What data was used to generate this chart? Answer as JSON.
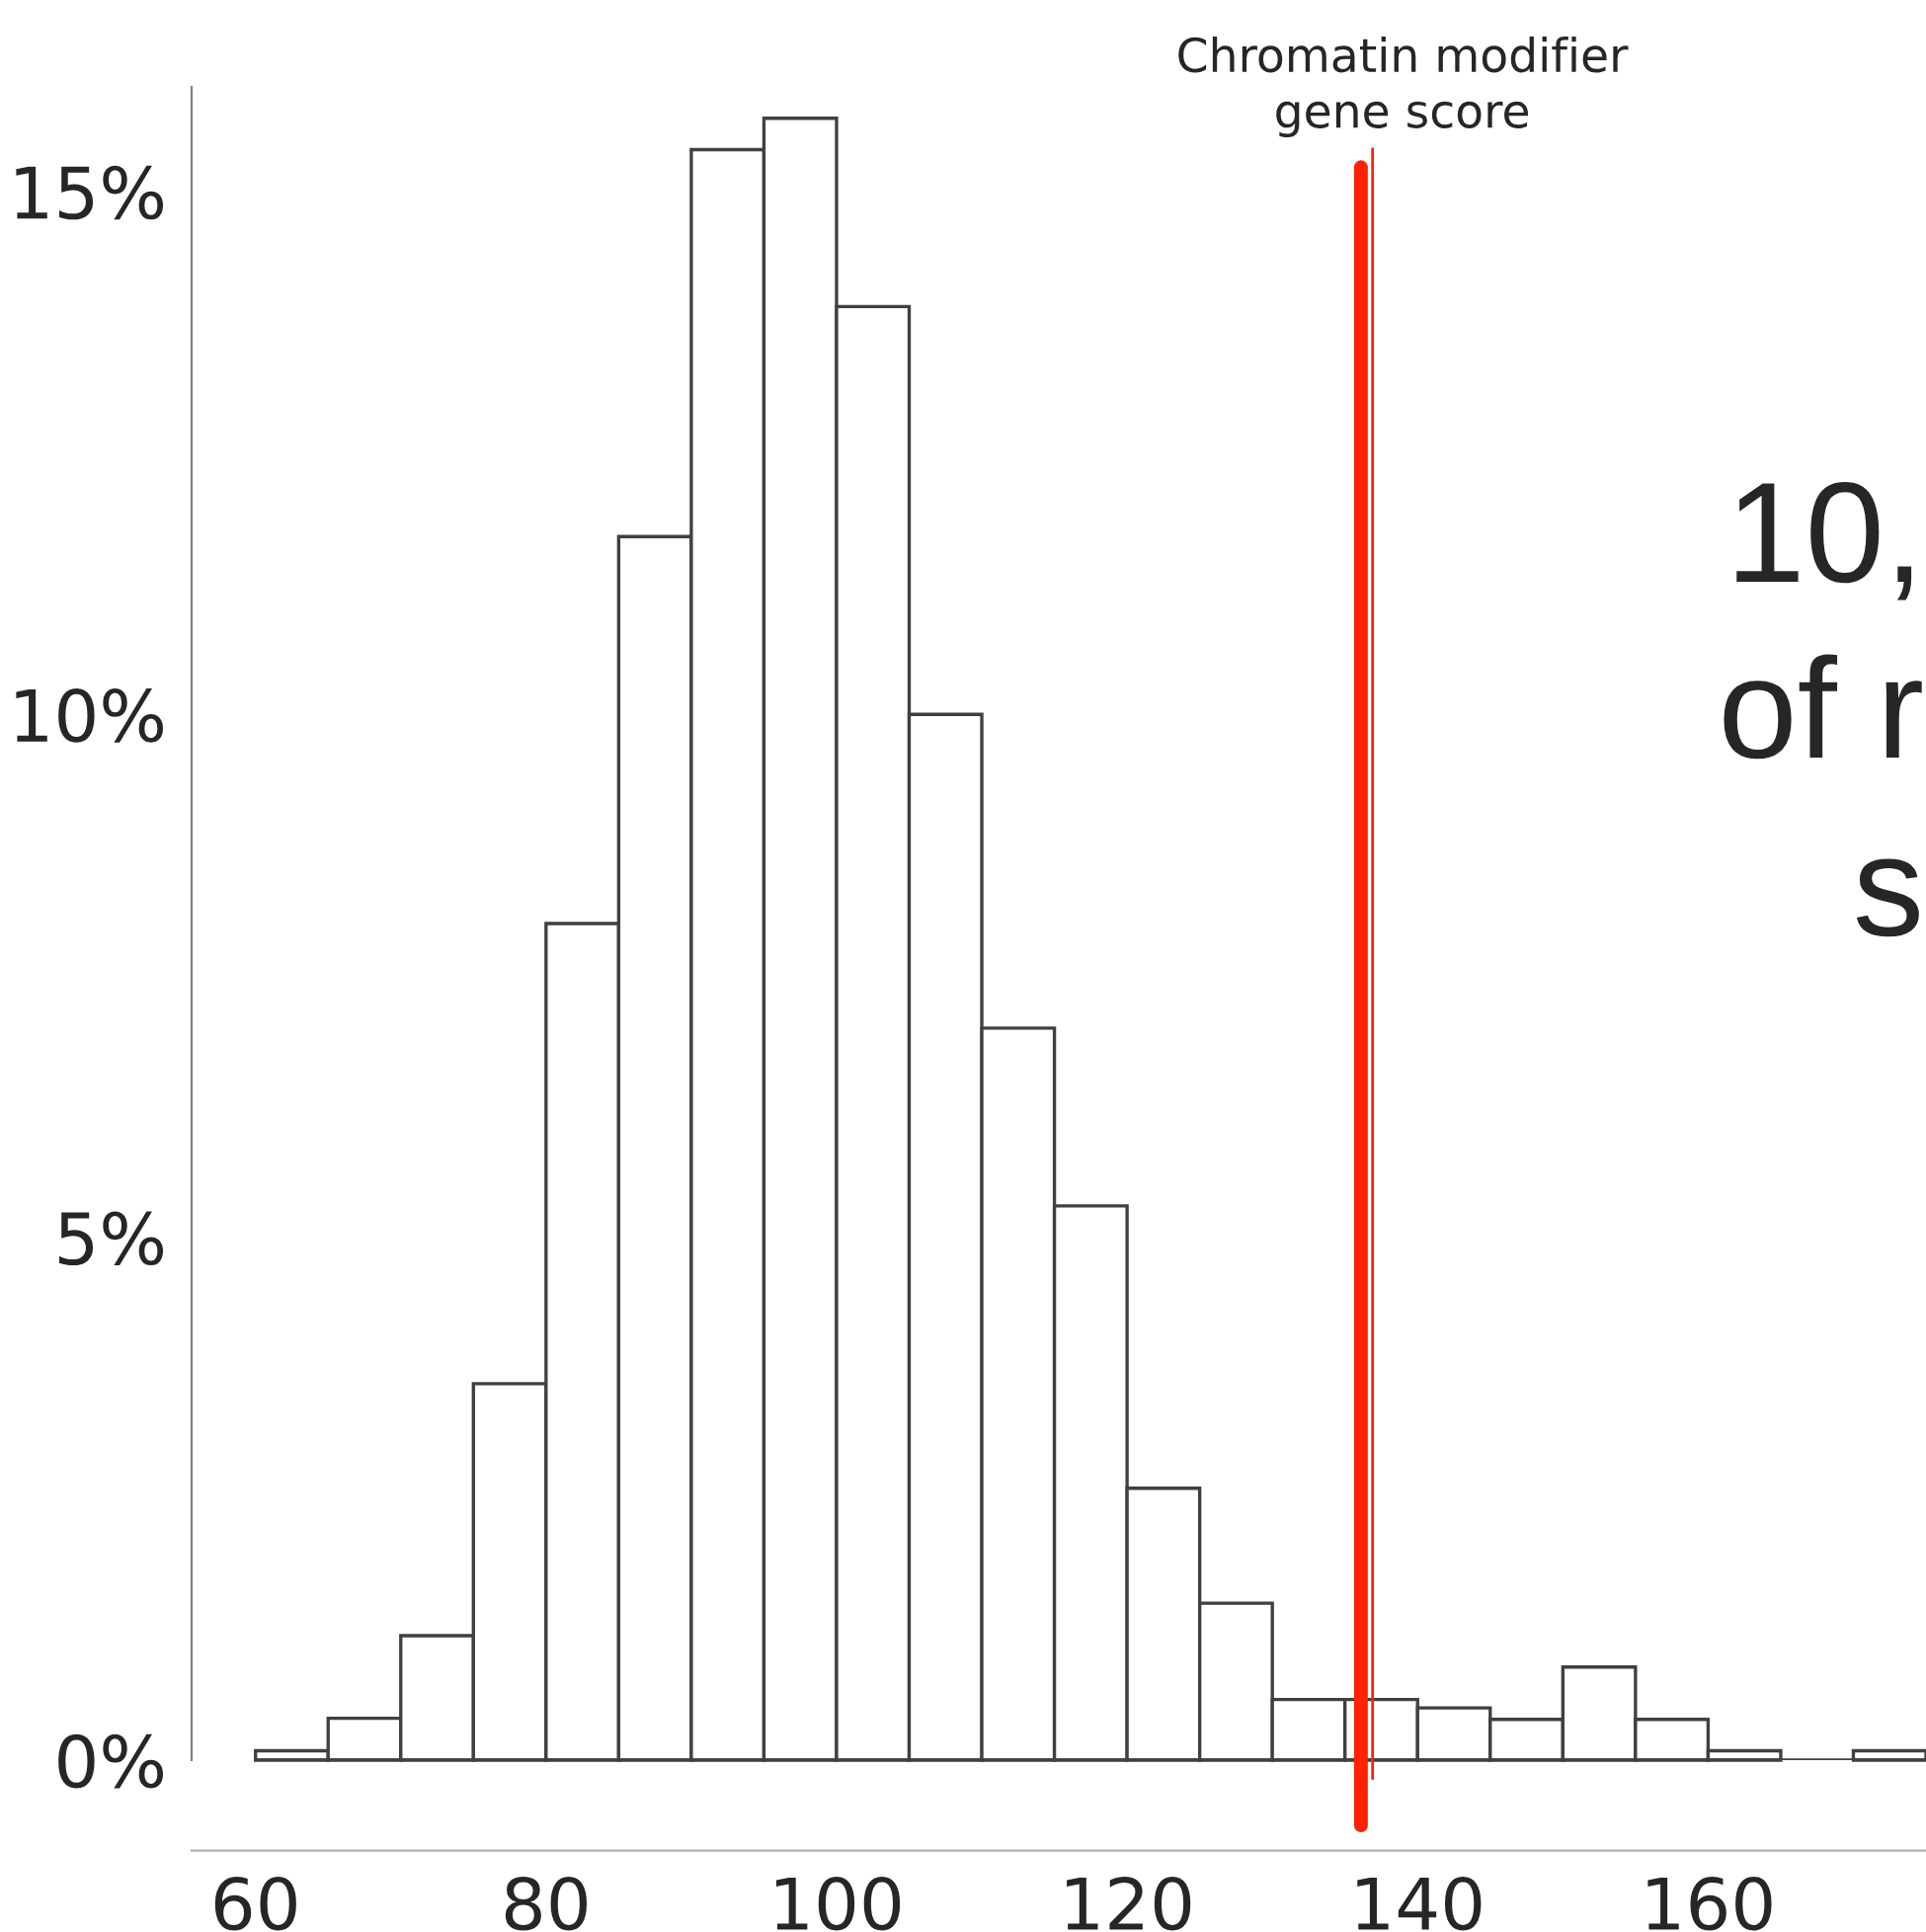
{
  "chart_data": {
    "type": "histogram",
    "bins": [
      60,
      65,
      70,
      75,
      80,
      85,
      90,
      95,
      100,
      105,
      110,
      115,
      120,
      125,
      130,
      135,
      140,
      145,
      150,
      155,
      160,
      165,
      170,
      175
    ],
    "values": [
      0.09,
      0.4,
      1.19,
      3.6,
      8.0,
      11.7,
      15.4,
      15.7,
      13.9,
      10.0,
      7.0,
      5.3,
      2.6,
      1.5,
      0.58,
      0.58,
      0.5,
      0.39,
      0.89,
      0.39,
      0.09,
      0,
      0.09
    ],
    "color": "#ffffff",
    "xlim": [
      55.6,
      175
    ],
    "xticks": [
      60,
      80,
      100,
      120,
      140,
      160
    ],
    "ylim": [
      0,
      16
    ],
    "yticks": [
      {
        "value": 0,
        "label": "0%"
      },
      {
        "value": 5,
        "label": "5%"
      },
      {
        "value": 10,
        "label": "10%"
      },
      {
        "value": 15,
        "label": "15%"
      }
    ],
    "ref_lines": [
      {
        "axis": "x",
        "value": 136.1,
        "label": "Chromatin modifier\ngene score",
        "color": "#ff2200"
      },
      {
        "axis": "x",
        "value": 136.9,
        "color": "#ff2200"
      }
    ],
    "annotations": [
      "10,",
      "of r",
      "s"
    ],
    "grid": false,
    "legend": false
  }
}
